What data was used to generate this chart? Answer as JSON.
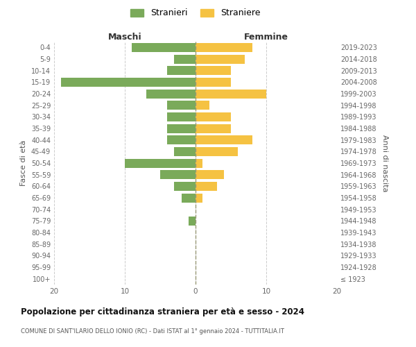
{
  "age_groups": [
    "100+",
    "95-99",
    "90-94",
    "85-89",
    "80-84",
    "75-79",
    "70-74",
    "65-69",
    "60-64",
    "55-59",
    "50-54",
    "45-49",
    "40-44",
    "35-39",
    "30-34",
    "25-29",
    "20-24",
    "15-19",
    "10-14",
    "5-9",
    "0-4"
  ],
  "birth_years": [
    "≤ 1923",
    "1924-1928",
    "1929-1933",
    "1934-1938",
    "1939-1943",
    "1944-1948",
    "1949-1953",
    "1954-1958",
    "1959-1963",
    "1964-1968",
    "1969-1973",
    "1974-1978",
    "1979-1983",
    "1984-1988",
    "1989-1993",
    "1994-1998",
    "1999-2003",
    "2004-2008",
    "2009-2013",
    "2014-2018",
    "2019-2023"
  ],
  "maschi": [
    0,
    0,
    0,
    0,
    0,
    1,
    0,
    2,
    3,
    5,
    10,
    3,
    4,
    4,
    4,
    4,
    7,
    19,
    4,
    3,
    9
  ],
  "femmine": [
    0,
    0,
    0,
    0,
    0,
    0,
    0,
    1,
    3,
    4,
    1,
    6,
    8,
    5,
    5,
    2,
    10,
    5,
    5,
    7,
    8
  ],
  "color_maschi": "#7aaa5a",
  "color_femmine": "#f5c242",
  "title": "Popolazione per cittadinanza straniera per età e sesso - 2024",
  "subtitle": "COMUNE DI SANT'ILARIO DELLO IONIO (RC) - Dati ISTAT al 1° gennaio 2024 - TUTTITALIA.IT",
  "ylabel_left": "Fasce di età",
  "ylabel_right": "Anni di nascita",
  "xlabel_maschi": "Maschi",
  "xlabel_femmine": "Femmine",
  "legend_maschi": "Stranieri",
  "legend_femmine": "Straniere",
  "xlim": 20,
  "background_color": "#ffffff",
  "grid_color": "#cccccc"
}
